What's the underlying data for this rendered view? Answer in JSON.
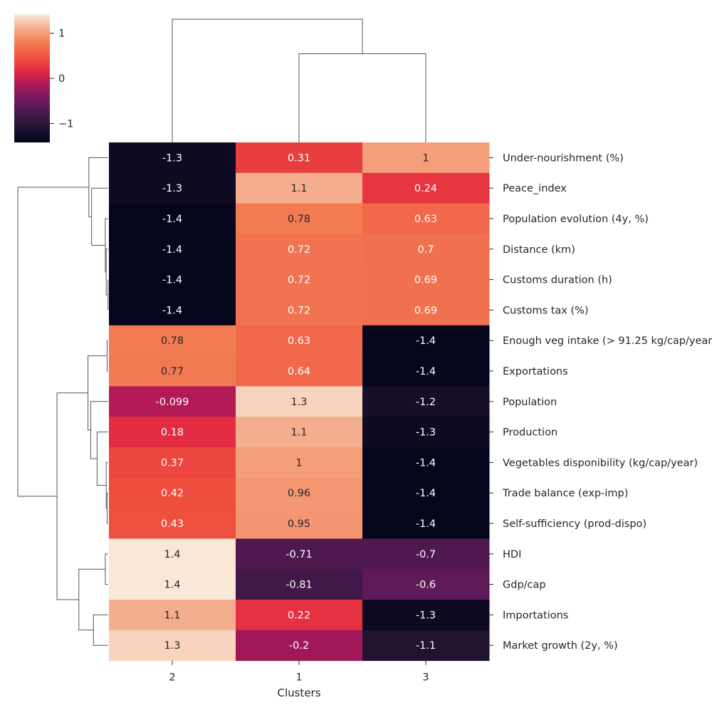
{
  "chart_data": {
    "type": "heatmap",
    "title": "",
    "xlabel": "Clusters",
    "ylabel": "",
    "columns": [
      "2",
      "1",
      "3"
    ],
    "rows": [
      "Under-nourishment (%)",
      "Peace_index",
      "Population evolution (4y, %)",
      "Distance (km)",
      "Customs duration (h)",
      "Customs tax (%)",
      "Enough veg intake (> 91.25 kg/cap/year)",
      "Exportations",
      "Population",
      "Production",
      "Vegetables disponibility (kg/cap/year)",
      "Trade balance (exp-imp)",
      "Self-sufficiency (prod-dispo)",
      "HDI",
      "Gdp/cap",
      "Importations",
      "Market growth (2y, %)"
    ],
    "values": [
      [
        -1.3,
        0.31,
        1
      ],
      [
        -1.3,
        1.1,
        0.24
      ],
      [
        -1.4,
        0.78,
        0.63
      ],
      [
        -1.4,
        0.72,
        0.7
      ],
      [
        -1.4,
        0.72,
        0.69
      ],
      [
        -1.4,
        0.72,
        0.69
      ],
      [
        0.78,
        0.63,
        -1.4
      ],
      [
        0.77,
        0.64,
        -1.4
      ],
      [
        -0.099,
        1.3,
        -1.2
      ],
      [
        0.18,
        1.1,
        -1.3
      ],
      [
        0.37,
        1,
        -1.4
      ],
      [
        0.42,
        0.96,
        -1.4
      ],
      [
        0.43,
        0.95,
        -1.4
      ],
      [
        1.4,
        -0.71,
        -0.7
      ],
      [
        1.4,
        -0.81,
        -0.6
      ],
      [
        1.1,
        0.22,
        -1.3
      ],
      [
        1.3,
        -0.2,
        -1.1
      ]
    ],
    "value_labels": [
      [
        "-1.3",
        "0.31",
        "1"
      ],
      [
        "-1.3",
        "1.1",
        "0.24"
      ],
      [
        "-1.4",
        "0.78",
        "0.63"
      ],
      [
        "-1.4",
        "0.72",
        "0.7"
      ],
      [
        "-1.4",
        "0.72",
        "0.69"
      ],
      [
        "-1.4",
        "0.72",
        "0.69"
      ],
      [
        "0.78",
        "0.63",
        "-1.4"
      ],
      [
        "0.77",
        "0.64",
        "-1.4"
      ],
      [
        "-0.099",
        "1.3",
        "-1.2"
      ],
      [
        "0.18",
        "1.1",
        "-1.3"
      ],
      [
        "0.37",
        "1",
        "-1.4"
      ],
      [
        "0.42",
        "0.96",
        "-1.4"
      ],
      [
        "0.43",
        "0.95",
        "-1.4"
      ],
      [
        "1.4",
        "-0.71",
        "-0.7"
      ],
      [
        "1.4",
        "-0.81",
        "-0.6"
      ],
      [
        "1.1",
        "0.22",
        "-1.3"
      ],
      [
        "1.3",
        "-0.2",
        "-1.1"
      ]
    ],
    "color_range": [
      -1.42,
      1.42
    ],
    "colorbar": {
      "ticks": [
        1,
        0,
        -1
      ],
      "tick_labels": [
        "1",
        "0",
        "−1"
      ],
      "placement": "top-left"
    },
    "colormap": "rocket",
    "col_dendrogram": {
      "merges": [
        {
          "left": "1",
          "right": "3",
          "height": 0.72
        },
        {
          "left": "2",
          "right": "1+3",
          "height": 1.0
        }
      ]
    },
    "row_dendrogram": {
      "placement": "left",
      "groups": [
        [
          "Under-nourishment (%)",
          "Peace_index",
          "Population evolution (4y, %)",
          "Distance (km)",
          "Customs duration (h)",
          "Customs tax (%)"
        ],
        [
          "Enough veg intake (> 91.25 kg/cap/year)",
          "Exportations",
          "Population",
          "Production",
          "Vegetables disponibility (kg/cap/year)",
          "Trade balance (exp-imp)",
          "Self-sufficiency (prod-dispo)"
        ],
        [
          "HDI",
          "Gdp/cap",
          "Importations",
          "Market growth (2y, %)"
        ]
      ]
    },
    "grid": false
  }
}
